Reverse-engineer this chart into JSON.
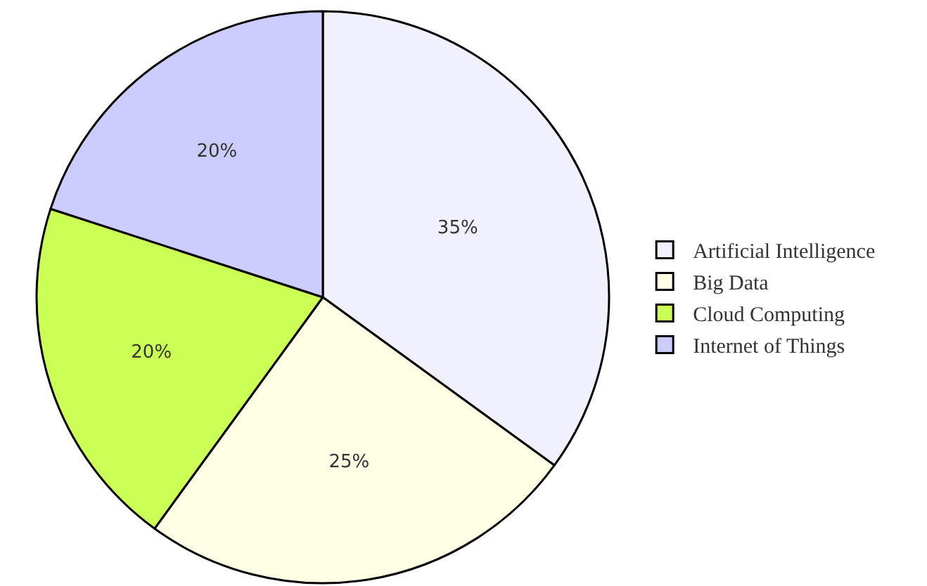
{
  "chart_data": {
    "type": "pie",
    "categories": [
      "Artificial Intelligence",
      "Big Data",
      "Cloud Computing",
      "Internet of Things"
    ],
    "values": [
      35,
      25,
      20,
      20
    ],
    "colors": [
      "#f0f0ff",
      "#ffffe6",
      "#ccff55",
      "#ccccff"
    ],
    "value_labels": [
      "35%",
      "25%",
      "20%",
      "20%"
    ],
    "legend": "right"
  }
}
